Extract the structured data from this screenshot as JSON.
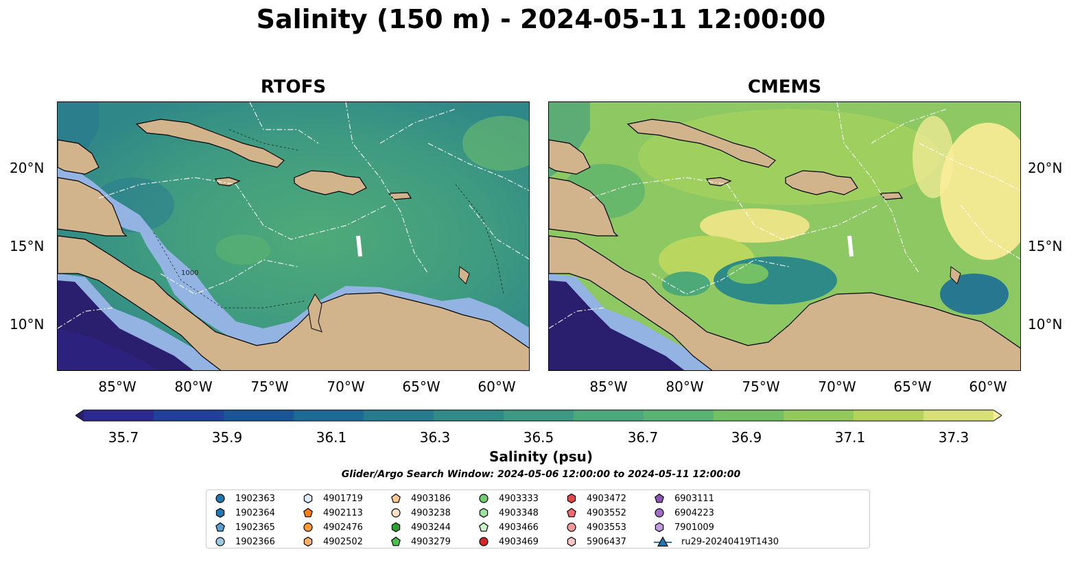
{
  "figure": {
    "title": "Salinity (150 m) - 2024-05-11 12:00:00",
    "panels": [
      "RTOFS",
      "CMEMS"
    ],
    "lat_labels": [
      "20°N",
      "15°N",
      "10°N"
    ],
    "lon_labels": [
      "85°W",
      "80°W",
      "75°W",
      "70°W",
      "65°W",
      "60°W"
    ],
    "colorbar": {
      "ticks": [
        "35.7",
        "35.9",
        "36.1",
        "36.3",
        "36.5",
        "36.7",
        "36.9",
        "37.1",
        "37.3"
      ],
      "label": "Salinity (psu)",
      "colors": [
        "#2a1f6e",
        "#2c2a8f",
        "#21409a",
        "#1a5598",
        "#1d6a94",
        "#277b8f",
        "#308a87",
        "#3d9983",
        "#4ba97c",
        "#59b473",
        "#72bf66",
        "#93c85b",
        "#b5d35c",
        "#d8e177",
        "#fcee9b"
      ]
    },
    "search_window": "Glider/Argo Search Window: 2024-05-06 12:00:00 to 2024-05-11 12:00:00",
    "contour_label": "1000"
  },
  "legend": [
    {
      "label": "1902363",
      "color": "#1f77b4",
      "marker": "circle"
    },
    {
      "label": "1902364",
      "color": "#1f77b4",
      "marker": "hexagon"
    },
    {
      "label": "1902365",
      "color": "#5a9fd4",
      "marker": "pentagon"
    },
    {
      "label": "1902366",
      "color": "#9ecae1",
      "marker": "circle"
    },
    {
      "label": "4901719",
      "color": "#dbeefa",
      "marker": "hexagon"
    },
    {
      "label": "4902113",
      "color": "#ff7f0e",
      "marker": "pentagon"
    },
    {
      "label": "4902476",
      "color": "#ff9a2e",
      "marker": "circle"
    },
    {
      "label": "4902502",
      "color": "#ffb066",
      "marker": "hexagon"
    },
    {
      "label": "4903186",
      "color": "#ffc794",
      "marker": "pentagon"
    },
    {
      "label": "4903238",
      "color": "#ffe0c2",
      "marker": "circle"
    },
    {
      "label": "4903244",
      "color": "#2ca02c",
      "marker": "hexagon"
    },
    {
      "label": "4903279",
      "color": "#4cbf4c",
      "marker": "pentagon"
    },
    {
      "label": "4903333",
      "color": "#6fcf6f",
      "marker": "circle"
    },
    {
      "label": "4903348",
      "color": "#9be39b",
      "marker": "hexagon"
    },
    {
      "label": "4903466",
      "color": "#ccf5cc",
      "marker": "pentagon"
    },
    {
      "label": "4903469",
      "color": "#d62728",
      "marker": "circle"
    },
    {
      "label": "4903472",
      "color": "#e4474a",
      "marker": "hexagon"
    },
    {
      "label": "4903552",
      "color": "#ee6b6e",
      "marker": "pentagon"
    },
    {
      "label": "4903553",
      "color": "#f59a9a",
      "marker": "circle"
    },
    {
      "label": "5906437",
      "color": "#fbc4c4",
      "marker": "hexagon"
    },
    {
      "label": "6903111",
      "color": "#8c55b5",
      "marker": "pentagon"
    },
    {
      "label": "6904223",
      "color": "#a06cc7",
      "marker": "circle"
    },
    {
      "label": "7901009",
      "color": "#c39ae0",
      "marker": "hexagon"
    },
    {
      "label": "ru29-20240419T1430",
      "color": "#1f77b4",
      "marker": "triangle"
    }
  ]
}
